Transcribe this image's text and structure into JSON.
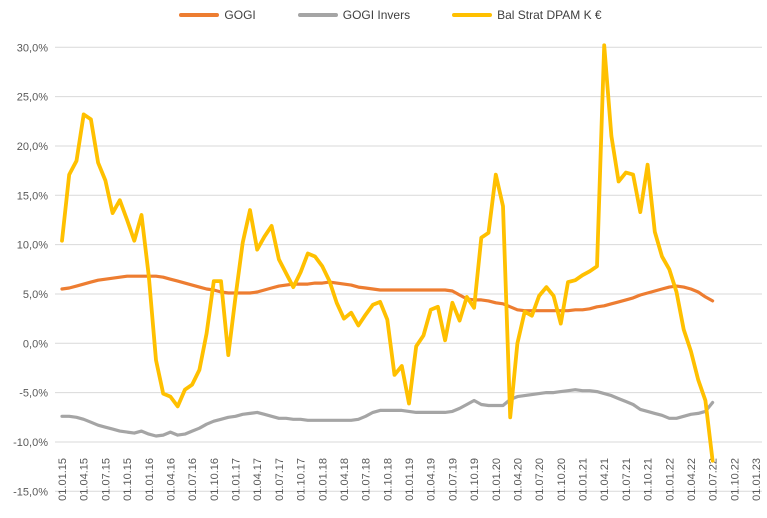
{
  "chart_data": {
    "type": "line",
    "title": "",
    "grid": true,
    "legend_position": "top",
    "x_start_label": "01.01.15",
    "x_end_label": "01.01.23",
    "ylim": [
      -15,
      30
    ],
    "y_step": 5,
    "y_tick_labels": [
      "30,0%",
      "25,0%",
      "20,0%",
      "15,0%",
      "10,0%",
      "5,0%",
      "0,0%",
      "-5,0%",
      "-10,0%",
      "-15,0%"
    ],
    "y_tick_values": [
      30,
      25,
      20,
      15,
      10,
      5,
      0,
      -5,
      -10,
      -15
    ],
    "x_tick_labels": [
      "01.01.15",
      "01.04.15",
      "01.07.15",
      "01.10.15",
      "01.01.16",
      "01.04.16",
      "01.07.16",
      "01.10.16",
      "01.01.17",
      "01.04.17",
      "01.07.17",
      "01.10.17",
      "01.01.18",
      "01.04.18",
      "01.07.18",
      "01.10.18",
      "01.01.19",
      "01.04.19",
      "01.07.19",
      "01.10.19",
      "01.01.20",
      "01.04.20",
      "01.07.20",
      "01.10.20",
      "01.01.21",
      "01.04.21",
      "01.07.21",
      "01.10.21",
      "01.01.22",
      "01.04.22",
      "01.07.22",
      "01.10.22",
      "01.01.23"
    ],
    "months_per_tick": 3,
    "axis_color": "#595959",
    "gridline_color": "#d9d9d9",
    "series": [
      {
        "name": "GOGI",
        "color": "#ED7D31",
        "unit": "%",
        "values": [
          5.5,
          5.6,
          5.8,
          6.0,
          6.2,
          6.4,
          6.5,
          6.6,
          6.7,
          6.8,
          6.8,
          6.8,
          6.8,
          6.8,
          6.7,
          6.5,
          6.3,
          6.1,
          5.9,
          5.7,
          5.5,
          5.4,
          5.2,
          5.1,
          5.1,
          5.1,
          5.1,
          5.2,
          5.4,
          5.6,
          5.8,
          5.9,
          6.0,
          6.0,
          6.0,
          6.1,
          6.1,
          6.2,
          6.1,
          6.0,
          5.9,
          5.7,
          5.6,
          5.5,
          5.4,
          5.4,
          5.4,
          5.4,
          5.4,
          5.4,
          5.4,
          5.4,
          5.4,
          5.4,
          5.3,
          4.9,
          4.5,
          4.4,
          4.4,
          4.3,
          4.1,
          4.0,
          3.7,
          3.4,
          3.3,
          3.3,
          3.3,
          3.3,
          3.3,
          3.3,
          3.3,
          3.4,
          3.4,
          3.5,
          3.7,
          3.8,
          4.0,
          4.2,
          4.4,
          4.6,
          4.9,
          5.1,
          5.3,
          5.5,
          5.7,
          5.8,
          5.7,
          5.5,
          5.2,
          4.7,
          4.3
        ]
      },
      {
        "name": "GOGI Invers",
        "color": "#A5A5A5",
        "unit": "%",
        "values": [
          -7.4,
          -7.4,
          -7.5,
          -7.7,
          -8.0,
          -8.3,
          -8.5,
          -8.7,
          -8.9,
          -9.0,
          -9.1,
          -8.9,
          -9.2,
          -9.4,
          -9.3,
          -9.0,
          -9.3,
          -9.2,
          -8.9,
          -8.6,
          -8.2,
          -7.9,
          -7.7,
          -7.5,
          -7.4,
          -7.2,
          -7.1,
          -7.0,
          -7.2,
          -7.4,
          -7.6,
          -7.6,
          -7.7,
          -7.7,
          -7.8,
          -7.8,
          -7.8,
          -7.8,
          -7.8,
          -7.8,
          -7.8,
          -7.7,
          -7.4,
          -7.0,
          -6.8,
          -6.8,
          -6.8,
          -6.8,
          -6.9,
          -7.0,
          -7.0,
          -7.0,
          -7.0,
          -7.0,
          -6.9,
          -6.6,
          -6.2,
          -5.8,
          -6.2,
          -6.3,
          -6.3,
          -6.3,
          -5.7,
          -5.4,
          -5.3,
          -5.2,
          -5.1,
          -5.0,
          -5.0,
          -4.9,
          -4.8,
          -4.7,
          -4.8,
          -4.8,
          -4.9,
          -5.1,
          -5.3,
          -5.6,
          -5.9,
          -6.2,
          -6.7,
          -6.9,
          -7.1,
          -7.3,
          -7.6,
          -7.6,
          -7.4,
          -7.2,
          -7.1,
          -6.9,
          -6.0
        ]
      },
      {
        "name": "Bal Strat DPAM K €",
        "color": "#FFC000",
        "unit": "%",
        "values": [
          10.4,
          17.1,
          18.5,
          23.2,
          22.7,
          18.3,
          16.5,
          13.2,
          14.5,
          12.5,
          10.4,
          13.0,
          6.8,
          -1.7,
          -5.1,
          -5.4,
          -6.4,
          -4.7,
          -4.2,
          -2.7,
          1.0,
          6.3,
          6.3,
          -1.2,
          4.7,
          10.2,
          13.5,
          9.5,
          10.8,
          11.9,
          8.5,
          7.1,
          5.7,
          7.2,
          9.1,
          8.8,
          7.8,
          6.3,
          4.1,
          2.5,
          3.1,
          1.8,
          2.9,
          3.9,
          4.2,
          2.4,
          -3.2,
          -2.3,
          -6.1,
          -0.3,
          0.8,
          3.4,
          3.7,
          0.3,
          4.1,
          2.3,
          4.7,
          3.6,
          10.7,
          11.2,
          17.1,
          13.9,
          -7.5,
          0.0,
          3.2,
          2.8,
          4.8,
          5.7,
          4.8,
          2.0,
          6.2,
          6.4,
          6.9,
          7.3,
          7.8,
          30.2,
          21.0,
          16.4,
          17.3,
          17.1,
          13.3,
          18.1,
          11.3,
          8.8,
          7.5,
          5.2,
          1.4,
          -0.8,
          -3.7,
          -5.8,
          -11.9
        ]
      }
    ]
  }
}
